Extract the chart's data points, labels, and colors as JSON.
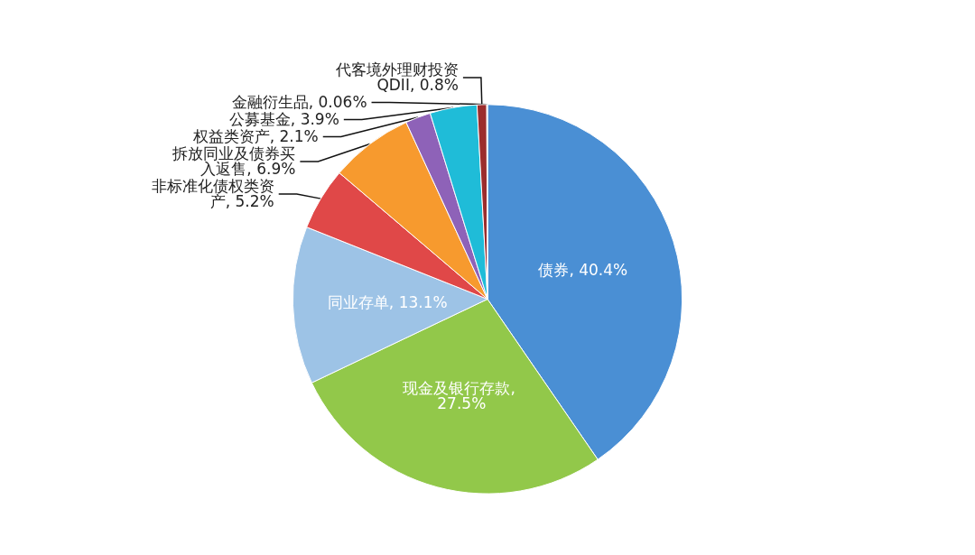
{
  "chart_data": {
    "type": "pie",
    "categories": [
      "债券, 40.4%",
      "现金及银行存款, 27.5%",
      "同业存单, 13.1%",
      "非标准化债权类资产, 5.2%",
      "拆放同业及债券买入返售, 6.9%",
      "权益类资产, 2.1%",
      "公募基金, 3.9%",
      "代客境外理财投资QDII, 0.8%",
      "金融衍生品, 0.06%"
    ],
    "values": [
      40.4,
      27.5,
      13.1,
      5.2,
      6.9,
      2.1,
      3.9,
      0.8,
      0.06
    ],
    "colors": [
      "#4a8fd4",
      "#92c84a",
      "#9dc3e6",
      "#e04848",
      "#f79a2e",
      "#8e62b8",
      "#1fbcd8",
      "#9b2d2d",
      "#bfbfbf"
    ],
    "legend": false
  }
}
